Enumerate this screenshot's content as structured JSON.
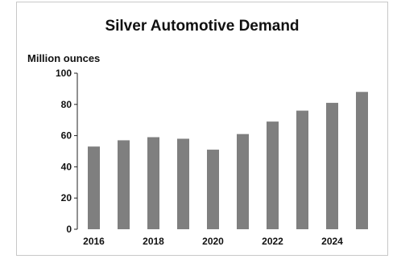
{
  "chart_data": {
    "type": "bar",
    "title": "Silver Automotive Demand",
    "ylabel": "Million ounces",
    "xlabel": "",
    "categories": [
      "2016",
      "2017",
      "2018",
      "2019",
      "2020",
      "2021",
      "2022",
      "2023",
      "2024",
      "2025"
    ],
    "values": [
      53,
      57,
      59,
      58,
      51,
      61,
      69,
      76,
      81,
      88
    ],
    "x_tick_labels": [
      "2016",
      "2018",
      "2020",
      "2022",
      "2024"
    ],
    "y_ticks": [
      "0",
      "20",
      "40",
      "60",
      "80",
      "100"
    ],
    "ylim": [
      0,
      100
    ],
    "bar_color": "#7f7f7f",
    "grid": false,
    "legend": "none"
  }
}
